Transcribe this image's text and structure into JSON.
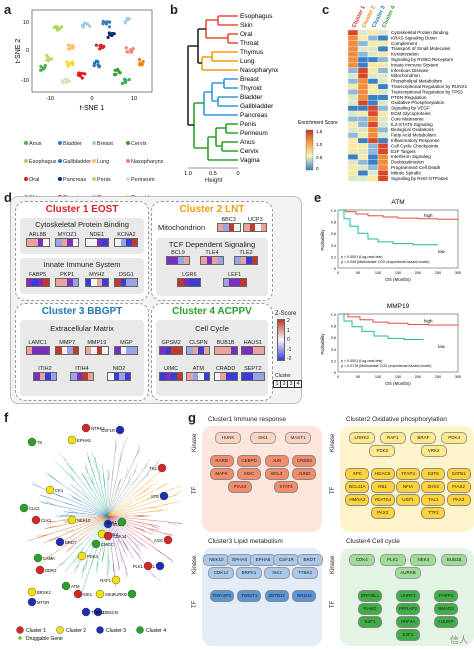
{
  "panels": {
    "a": "a",
    "b": "b",
    "c": "c",
    "d": "d",
    "e": "e",
    "f": "f",
    "g": "g"
  },
  "panel_a": {
    "ylabel": "t-SNE 2",
    "xlabel": "t-SNE 1",
    "xticks": [
      "-10",
      "0",
      "10"
    ],
    "yticks": [
      "10",
      "0",
      "-10"
    ],
    "legend": [
      {
        "name": "Anus",
        "color": "#4daf4a"
      },
      {
        "name": "Bladder",
        "color": "#377eb8"
      },
      {
        "name": "Breast",
        "color": "#a6cee3"
      },
      {
        "name": "Cervix",
        "color": "#33a02c"
      },
      {
        "name": "Esophagus",
        "color": "#a6d854"
      },
      {
        "name": "Gallbladder",
        "color": "#1f78b4"
      },
      {
        "name": "Lung",
        "color": "#fdbf6f"
      },
      {
        "name": "Nasopharynx",
        "color": "#fb8072"
      },
      {
        "name": "Oral",
        "color": "#e31a1c"
      },
      {
        "name": "Pancreas",
        "color": "#08306b"
      },
      {
        "name": "Penis",
        "color": "#b3de69"
      },
      {
        "name": "Perineum",
        "color": "#c7e9b4"
      },
      {
        "name": "Skin",
        "color": "#ff7f00"
      },
      {
        "name": "Throat",
        "color": "#d62728"
      },
      {
        "name": "Thymus",
        "color": "#9ecae1"
      },
      {
        "name": "Thyroid",
        "color": "#ffd92f"
      },
      {
        "name": "Vagina",
        "color": "#41ab5d"
      }
    ]
  },
  "panel_b": {
    "tissues": [
      "Esophagus",
      "Skin",
      "Oral",
      "Throat",
      "Thymus",
      "Lung",
      "Nasopharynx",
      "Breast",
      "Thyroid",
      "Bladder",
      "Gallbladder",
      "Pancreas",
      "Penis",
      "Perineum",
      "Anus",
      "Cervix",
      "Vagina"
    ],
    "xticks": [
      "1.0",
      "0.5",
      "0"
    ],
    "xlabel": "Height"
  },
  "panel_c": {
    "columns": [
      {
        "label": "Cluster 1",
        "color": "#d62728"
      },
      {
        "label": "Cluster 2",
        "color": "#ff7f0e"
      },
      {
        "label": "Cluster 3",
        "color": "#1f77b4"
      },
      {
        "label": "Cluster 4",
        "color": "#2ca02c"
      }
    ],
    "pathways": [
      "Cytoskeletal Protein Binding",
      "KRAS Signaling Down",
      "Complement",
      "Transport of Small Molecules",
      "Keratinization",
      "Signaling by ROBO Receptors",
      "Innate Immune System",
      "Infectious Disease",
      "Mitochondrion",
      "Phospholipid Metabolism",
      "Transcriptional Regulation by RUNX1",
      "Transcriptional Regulation by TP53",
      "PTEN Regulation",
      "Oxidative Phosphorylation",
      "Signaling by VEGF",
      "ECM Glycoproteins",
      "Core Matrisome",
      "IL2-STAT5 Signaling",
      "Biological Oxidations",
      "Fatty Acid Metabolism",
      "Inflammatory Response",
      "Cell Cycle Checkpoints",
      "E2F Targets",
      "Interferon Signaling",
      "Deubiquitination",
      "Programmed Cell Death",
      "Mitotic Spindle",
      "Signaling by RHO GTPases"
    ],
    "colorbar_title": "Enrichment Score",
    "colorbar_ticks": [
      "1.5",
      "1.0",
      "0.5",
      "0"
    ]
  },
  "panel_d": {
    "clusters": [
      {
        "title": "Cluster 1  EOST",
        "color": "#d62728",
        "groups": [
          {
            "name": "Cytoskeletal Protein Binding",
            "genes": [
              "ARL8B",
              "MYOZ1",
              "NDE1",
              "KCNA2"
            ]
          },
          {
            "name": "Innate Immune System",
            "genes": [
              "FABP5",
              "PKP1",
              "MYH2",
              "DSG1"
            ]
          }
        ]
      },
      {
        "title": "Cluster 2  LNT",
        "color": "#f39c12",
        "groups": [
          {
            "name": "Mitochondrion",
            "genes": [
              "BBC3",
              "UCP3"
            ]
          },
          {
            "name": "TCF Dependent Signaling",
            "genes": [
              "BCL9",
              "TLE4",
              "TLE2",
              "LGR6",
              "LEF1"
            ]
          }
        ]
      },
      {
        "title": "Cluster 3  BBGPT",
        "color": "#1f77b4",
        "groups": [
          {
            "name": "Extracellular Matrix",
            "genes": [
              "LAMC1",
              "MMP7",
              "MMP19",
              "MGP",
              "ITIH2",
              "ITIH4",
              "NID2"
            ]
          }
        ]
      },
      {
        "title": "Cluster 4  ACPPV",
        "color": "#2ca02c",
        "groups": [
          {
            "name": "Cell Cycle",
            "genes": [
              "GPSM2",
              "CLSPN",
              "BUB1B",
              "HAUS1",
              "UIMC",
              "ATM",
              "CRADD",
              "SEPT2"
            ]
          }
        ]
      }
    ],
    "zscore_title": "Z-Score",
    "zscore_ticks": [
      "2",
      "1",
      "0",
      "-1",
      "-2"
    ],
    "cluster_legend_title": "Cluster",
    "cluster_legend": [
      "1",
      "2",
      "3",
      "4"
    ]
  },
  "panel_e": {
    "plots": [
      {
        "title": "ATM",
        "high_label": "high",
        "low_label": "low",
        "p1": "p < 0.0001 (Log-rank test)",
        "p2": "p = 0.049 (Multivariate COX proportional hazard model)",
        "xlabel": "OS (Months)",
        "ylabel": "Probability",
        "xticks": [
          "0",
          "50",
          "100",
          "150",
          "200",
          "250",
          "300"
        ],
        "yticks": [
          "1.0",
          "0.8",
          "0.6",
          "0.4",
          "0.2",
          "0"
        ]
      },
      {
        "title": "MMP19",
        "high_label": "high",
        "low_label": "low",
        "p1": "p < 0.0001 (Log-rank test)",
        "p2": "p = 0.0178 (Multivariate COX proportional hazard model)",
        "xlabel": "OS (Months)",
        "ylabel": "Probability",
        "xticks": [
          "0",
          "50",
          "100",
          "150",
          "200",
          "250",
          "300"
        ],
        "yticks": [
          "1.0",
          "0.8",
          "0.6",
          "0.4",
          "0.2",
          "0"
        ]
      }
    ],
    "colors": {
      "high": "#e74c3c",
      "low": "#1abc9c"
    }
  },
  "panel_f": {
    "labels": [
      "NTRK2",
      "EPHA5",
      "CSF1R",
      "TK",
      "TKL",
      "CK1",
      "STE",
      "CLK3",
      "CLK1",
      "NEK10",
      "BUB1",
      "ULK1",
      "AGC",
      "CDK4",
      "BRDT",
      "CMGC",
      "CDK14",
      "PDK4",
      "PLK1",
      "CAMK",
      "DDR2",
      "BRSK2",
      "MTOR",
      "ATM",
      "SIK1",
      "SIK2",
      "OBSCN",
      "AURKB",
      "PLK1",
      "RAF1",
      "TTBK2"
    ],
    "legend": [
      {
        "name": "Cluster 1",
        "color": "#d62728"
      },
      {
        "name": "Cluster 2",
        "color": "#f1e30e"
      },
      {
        "name": "Cluster 3",
        "color": "#1f2fb4"
      },
      {
        "name": "Cluster 4",
        "color": "#2ca02c"
      }
    ],
    "druggable": "Druggable Gene",
    "druggable_color": "#66cc33"
  },
  "panel_g": {
    "kinase_label": "Kinase",
    "tf_label": "TF",
    "boxes": [
      {
        "title": "Cluster1   Immune response",
        "kinases": [
          "HUNK",
          "SIK1",
          "MAST1"
        ],
        "tfs": [
          "RARB",
          "CEBPD",
          "JUN",
          "CREB3",
          "MAFK",
          "MSC",
          "BCL3",
          "JUND",
          "PIAS3",
          "STAT4"
        ]
      },
      {
        "title": "Cluster2   Oxidative phosphorylation",
        "kinases": [
          "LRRK2",
          "RAF1",
          "BRAF",
          "PDK4",
          "PDK2",
          "VRK2"
        ],
        "tfs": [
          "XPC",
          "HDAC5",
          "TFAP4",
          "E2F6",
          "SATB1",
          "BCL11A",
          "RB1",
          "NFIA",
          "ZHX2",
          "PIAS2",
          "HMGA2",
          "YEATS4",
          "USF1",
          "TAL1",
          "PAX3",
          "PAX3",
          "TTF2"
        ]
      },
      {
        "title": "Cluster3   Lipid metabolism",
        "kinases": [
          "NEK10",
          "EPHA4",
          "EPHA5",
          "CSF1R",
          "BRDT",
          "CDK14",
          "BRPK1",
          "SIK2",
          "TTBK2"
        ],
        "tfs": [
          "TNFAIP3",
          "TWIST1",
          "ZBTB17",
          "NR1H2"
        ]
      },
      {
        "title": "Cluster4   Cell cycle",
        "kinases": [
          "CDK4",
          "PLK1",
          "NEK4",
          "BUB1B",
          "AURKB"
        ],
        "tfs": [
          "ZFP36L1",
          "UHRF1",
          "PARP1",
          "RARG",
          "PRRAP2",
          "SMAD3",
          "E4F1",
          "HNF4A",
          "HJURP",
          "E2F1"
        ]
      }
    ],
    "watermark": "信人"
  }
}
